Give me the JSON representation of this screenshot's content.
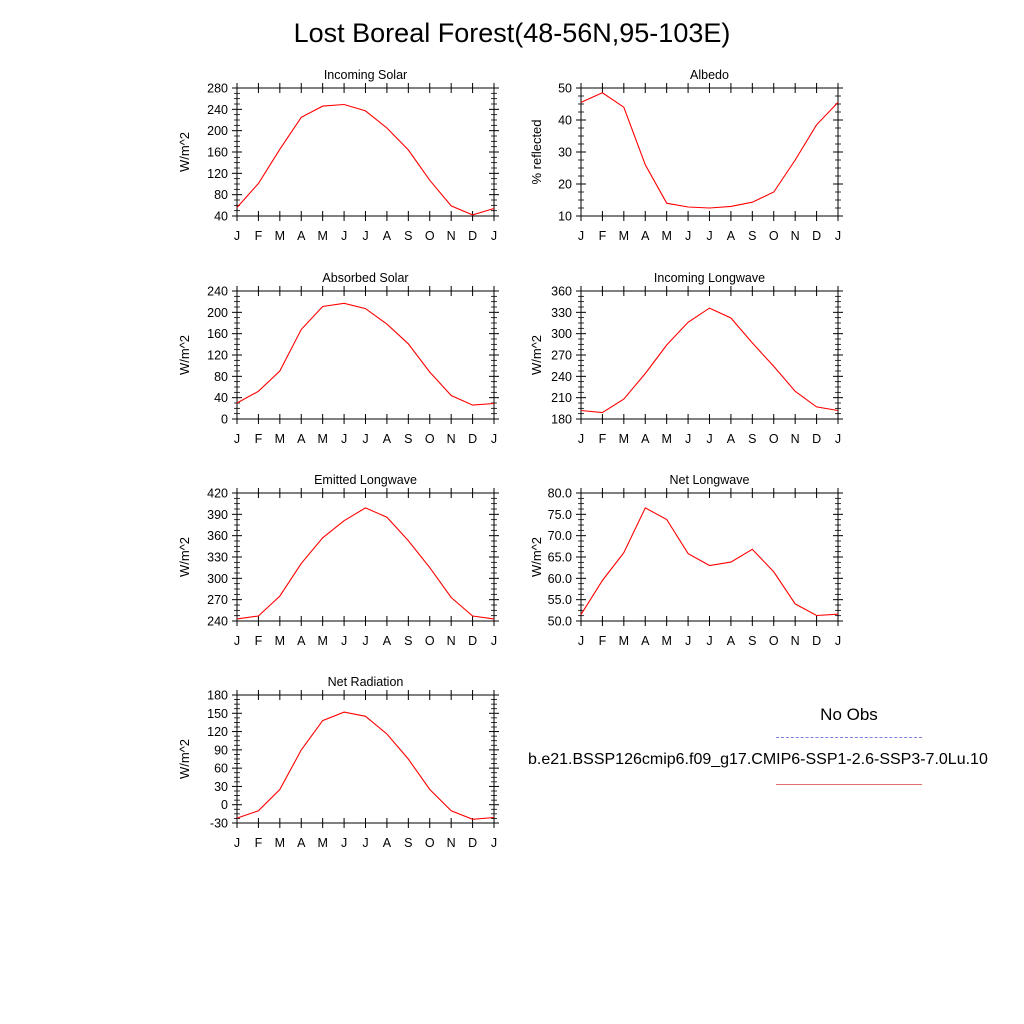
{
  "title": "Lost Boreal Forest(48-56N,95-103E)",
  "legend": {
    "obs_label": "No Obs",
    "model_label": "b.e21.BSSP126cmip6.f09_g17.CMIP6-SSP1-2.6-SSP3-7.0Lu.10",
    "obs_color": "#8080e0",
    "model_color": "#ff0000"
  },
  "chart_data": [
    {
      "type": "line",
      "title": "Incoming Solar",
      "ylabel": "W/m^2",
      "categories": [
        "J",
        "F",
        "M",
        "A",
        "M",
        "J",
        "J",
        "A",
        "S",
        "O",
        "N",
        "D",
        "J"
      ],
      "ylim": [
        40,
        280
      ],
      "yticks": [
        "40",
        "80",
        "120",
        "160",
        "200",
        "240",
        "280"
      ],
      "series": [
        {
          "color": "#ff0000",
          "values": [
            56,
            101,
            165,
            225,
            246,
            249,
            237,
            205,
            164,
            107,
            59,
            42,
            54
          ]
        }
      ]
    },
    {
      "type": "line",
      "title": "Albedo",
      "ylabel": "% reflected",
      "categories": [
        "J",
        "F",
        "M",
        "A",
        "M",
        "J",
        "J",
        "A",
        "S",
        "O",
        "N",
        "D",
        "J"
      ],
      "ylim": [
        10,
        50
      ],
      "yticks": [
        "10",
        "20",
        "30",
        "40",
        "50"
      ],
      "series": [
        {
          "color": "#ff0000",
          "values": [
            45.5,
            48.5,
            44,
            26,
            14,
            12.8,
            12.5,
            13,
            14.3,
            17.5,
            27.5,
            38.5,
            45.5
          ]
        }
      ]
    },
    {
      "type": "line",
      "title": "Absorbed Solar",
      "ylabel": "W/m^2",
      "categories": [
        "J",
        "F",
        "M",
        "A",
        "M",
        "J",
        "J",
        "A",
        "S",
        "O",
        "N",
        "D",
        "J"
      ],
      "ylim": [
        0,
        240
      ],
      "yticks": [
        "0",
        "40",
        "80",
        "120",
        "160",
        "200",
        "240"
      ],
      "series": [
        {
          "color": "#ff0000",
          "values": [
            30,
            52,
            90,
            168,
            211,
            217,
            207,
            178,
            141,
            88,
            44,
            26,
            29
          ]
        }
      ]
    },
    {
      "type": "line",
      "title": "Incoming Longwave",
      "ylabel": "W/m^2",
      "categories": [
        "J",
        "F",
        "M",
        "A",
        "M",
        "J",
        "J",
        "A",
        "S",
        "O",
        "N",
        "D",
        "J"
      ],
      "ylim": [
        180,
        360
      ],
      "yticks": [
        "180",
        "210",
        "240",
        "270",
        "300",
        "330",
        "360"
      ],
      "series": [
        {
          "color": "#ff0000",
          "values": [
            192,
            189,
            208,
            244,
            284,
            316,
            336,
            322,
            287,
            254,
            219,
            197,
            192
          ]
        }
      ]
    },
    {
      "type": "line",
      "title": "Emitted Longwave",
      "ylabel": "W/m^2",
      "categories": [
        "J",
        "F",
        "M",
        "A",
        "M",
        "J",
        "J",
        "A",
        "S",
        "O",
        "N",
        "D",
        "J"
      ],
      "ylim": [
        240,
        420
      ],
      "yticks": [
        "240",
        "270",
        "300",
        "330",
        "360",
        "390",
        "420"
      ],
      "series": [
        {
          "color": "#ff0000",
          "values": [
            243,
            247,
            275,
            321,
            357,
            381,
            399,
            386,
            353,
            315,
            273,
            247,
            243
          ]
        }
      ]
    },
    {
      "type": "line",
      "title": "Net Longwave",
      "ylabel": "W/m^2",
      "categories": [
        "J",
        "F",
        "M",
        "A",
        "M",
        "J",
        "J",
        "A",
        "S",
        "O",
        "N",
        "D",
        "J"
      ],
      "ylim": [
        50,
        80
      ],
      "yticks": [
        "50.0",
        "55.0",
        "60.0",
        "65.0",
        "70.0",
        "75.0",
        "80.0"
      ],
      "series": [
        {
          "color": "#ff0000",
          "values": [
            51.5,
            59.5,
            66,
            76.5,
            73.8,
            65.8,
            63,
            63.8,
            66.8,
            61.5,
            54,
            51.3,
            51.6
          ]
        }
      ]
    },
    {
      "type": "line",
      "title": "Net Radiation",
      "ylabel": "W/m^2",
      "categories": [
        "J",
        "F",
        "M",
        "A",
        "M",
        "J",
        "J",
        "A",
        "S",
        "O",
        "N",
        "D",
        "J"
      ],
      "ylim": [
        -30,
        180
      ],
      "yticks": [
        "-30",
        "0",
        "30",
        "60",
        "90",
        "120",
        "150",
        "180"
      ],
      "series": [
        {
          "color": "#ff0000",
          "values": [
            -22,
            -10,
            25,
            90,
            138,
            152,
            145,
            116,
            75,
            25,
            -10,
            -24,
            -21
          ]
        }
      ]
    }
  ]
}
